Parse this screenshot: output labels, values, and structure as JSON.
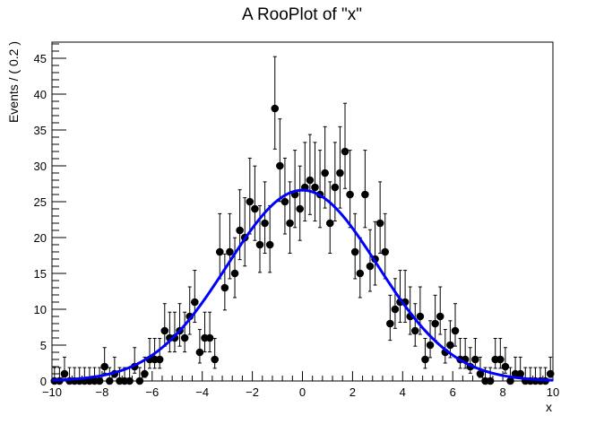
{
  "chart_data": {
    "type": "scatter",
    "title": "A RooPlot of \"x\"",
    "xlabel": "x",
    "ylabel": "Events / ( 0.2 )",
    "xlim": [
      -10,
      10
    ],
    "ylim": [
      0,
      47.25
    ],
    "x_ticks": [
      -10,
      -8,
      -6,
      -4,
      -2,
      0,
      2,
      4,
      6,
      8,
      10
    ],
    "y_ticks": [
      0,
      5,
      10,
      15,
      20,
      25,
      30,
      35,
      40,
      45
    ],
    "grid": false,
    "legend": "none",
    "series": [
      {
        "kind": "points-with-errors",
        "color": "#000000",
        "x": [
          -9.9,
          -9.7,
          -9.5,
          -9.3,
          -9.1,
          -8.9,
          -8.7,
          -8.5,
          -8.3,
          -8.1,
          -7.9,
          -7.7,
          -7.5,
          -7.3,
          -7.1,
          -6.9,
          -6.7,
          -6.5,
          -6.3,
          -6.1,
          -5.9,
          -5.7,
          -5.5,
          -5.3,
          -5.1,
          -4.9,
          -4.7,
          -4.5,
          -4.3,
          -4.1,
          -3.9,
          -3.7,
          -3.5,
          -3.3,
          -3.1,
          -2.9,
          -2.7,
          -2.5,
          -2.3,
          -2.1,
          -1.9,
          -1.7,
          -1.5,
          -1.3,
          -1.1,
          -0.9,
          -0.7,
          -0.5,
          -0.3,
          -0.1,
          0.1,
          0.3,
          0.5,
          0.7,
          0.9,
          1.1,
          1.3,
          1.5,
          1.7,
          1.9,
          2.1,
          2.3,
          2.5,
          2.7,
          2.9,
          3.1,
          3.3,
          3.5,
          3.7,
          3.9,
          4.1,
          4.3,
          4.5,
          4.7,
          4.9,
          5.1,
          5.3,
          5.5,
          5.7,
          5.9,
          6.1,
          6.3,
          6.5,
          6.7,
          6.9,
          7.1,
          7.3,
          7.5,
          7.7,
          7.9,
          8.1,
          8.3,
          8.5,
          8.7,
          8.9,
          9.1,
          9.3,
          9.5,
          9.7,
          9.9
        ],
        "y": [
          0,
          0,
          1,
          0,
          0,
          0,
          0,
          0,
          0,
          0,
          2,
          0,
          1,
          0,
          0,
          0,
          2,
          0,
          1,
          3,
          3,
          3,
          7,
          6,
          6,
          7,
          6,
          9,
          11,
          4,
          6,
          6,
          3,
          18,
          13,
          18,
          15,
          21,
          20,
          25,
          24,
          19,
          22,
          19,
          38,
          30,
          25,
          22,
          26,
          24,
          27,
          28,
          27,
          26,
          29,
          22,
          27,
          29,
          32,
          26,
          18,
          15,
          26,
          16,
          17,
          22,
          18,
          8,
          10,
          11,
          11,
          9,
          7,
          9,
          3,
          5,
          8,
          9,
          4,
          5,
          7,
          3,
          3,
          2,
          3,
          1,
          0,
          0,
          3,
          3,
          2,
          0,
          1,
          1,
          0,
          0,
          0,
          0,
          0,
          1
        ],
        "errors": "poisson"
      },
      {
        "kind": "curve",
        "color": "#0000ff",
        "function": "gaussian",
        "mean": 0,
        "sigma": 3,
        "amplitude": 26.6
      }
    ]
  }
}
